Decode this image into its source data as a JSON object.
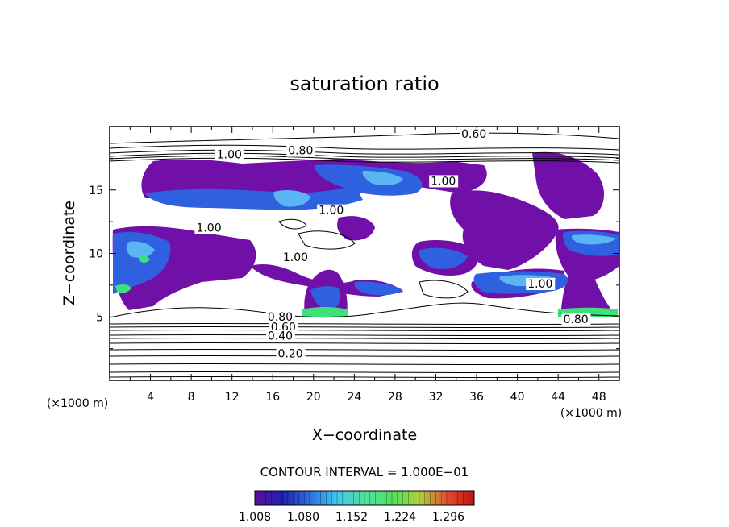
{
  "chart_data": {
    "type": "heatmap",
    "title": "saturation ratio",
    "xlabel": "X−coordinate",
    "ylabel": "Z−coordinate",
    "x_unit_label": "(×1000 m)",
    "z_unit_label": "(×1000 m)",
    "xlim": [
      0,
      50
    ],
    "ylim": [
      0,
      20
    ],
    "x_ticks": [
      4,
      8,
      12,
      16,
      20,
      24,
      28,
      32,
      36,
      40,
      44,
      48
    ],
    "y_ticks": [
      5,
      10,
      15
    ],
    "contour_labels": [
      {
        "text": "0.60",
        "x": 34.5,
        "z": 19.1
      },
      {
        "text": "0.80",
        "x": 17.5,
        "z": 17.8
      },
      {
        "text": "1.00",
        "x": 10.5,
        "z": 17.5
      },
      {
        "text": "1.00",
        "x": 31.5,
        "z": 15.4
      },
      {
        "text": "1.00",
        "x": 20.5,
        "z": 13.1
      },
      {
        "text": "1.00",
        "x": 8.5,
        "z": 11.7
      },
      {
        "text": "1.00",
        "x": 17.0,
        "z": 9.4
      },
      {
        "text": "1.00",
        "x": 41.0,
        "z": 7.3
      },
      {
        "text": "0.80",
        "x": 15.5,
        "z": 4.7
      },
      {
        "text": "0.60",
        "x": 15.8,
        "z": 3.9
      },
      {
        "text": "0.80",
        "x": 44.5,
        "z": 4.5
      },
      {
        "text": "0.40",
        "x": 15.5,
        "z": 3.2
      },
      {
        "text": "0.20",
        "x": 16.5,
        "z": 1.8
      }
    ],
    "contour_interval_text": "CONTOUR INTERVAL = 1.000E−01",
    "colorbar": {
      "labels": [
        "1.008",
        "1.080",
        "1.152",
        "1.224",
        "1.296"
      ],
      "colors": [
        "#5a0f9a",
        "#2020b0",
        "#2f6fe0",
        "#40c8f0",
        "#4fe0a0",
        "#50e060",
        "#b0d040",
        "#e05030",
        "#c01010"
      ]
    },
    "fill_colors": {
      "purple": "#7010a8",
      "blue": "#2f60e0",
      "lightblue": "#5ab6f2",
      "green": "#3fe07a"
    }
  }
}
